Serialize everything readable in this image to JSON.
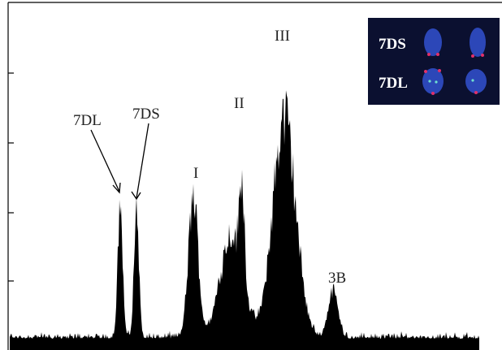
{
  "peaks": [
    {
      "label": "7DL"
    },
    {
      "label": "7DS"
    },
    {
      "label": "I"
    },
    {
      "label": "II"
    },
    {
      "label": "III"
    },
    {
      "label": "3B"
    }
  ],
  "inset": {
    "labels": [
      "7DS",
      "7DL"
    ]
  }
}
